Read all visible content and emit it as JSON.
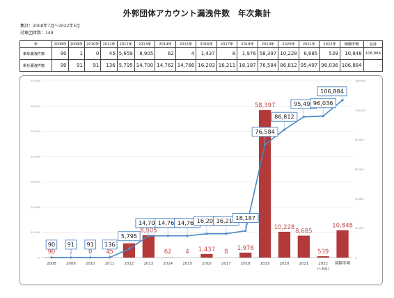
{
  "header": {
    "title": "外郭団体アカウント漏洩件数　年次集計",
    "period_label": "集計：2008年7月～2022年5月",
    "count_label": "対象団体数：149"
  },
  "table": {
    "corner": "年",
    "years": [
      "2008年",
      "2009年",
      "2010年",
      "2011年",
      "2012年",
      "2013年",
      "2014年",
      "2015年",
      "2016年",
      "2017年",
      "2018年",
      "2019年",
      "2020年",
      "2021年",
      "2022年",
      "時期不明",
      "合計"
    ],
    "rows": [
      {
        "label": "単年漏洩件数",
        "values": [
          "90",
          "1",
          "0",
          "45",
          "5,659",
          "8,905",
          "62",
          "4",
          "1,437",
          "8",
          "1,976",
          "58,397",
          "10,228",
          "8,685",
          "539",
          "10,848",
          "106,884"
        ]
      },
      {
        "label": "累計漏洩件数",
        "values": [
          "90",
          "91",
          "91",
          "136",
          "5,795",
          "14,700",
          "14,762",
          "14,766",
          "16,203",
          "16,211",
          "18,187",
          "76,584",
          "86,812",
          "95,497",
          "96,036",
          "106,884",
          "-"
        ]
      }
    ]
  },
  "colors": {
    "bar": "#b33a3a",
    "line": "#4a86c5",
    "bar_label": "#c24a4a",
    "callout_border": "#4a86c5"
  },
  "chart_data": {
    "type": "bar+line",
    "categories": [
      "2008",
      "2009",
      "2010",
      "2011",
      "2012",
      "2013",
      "2014",
      "2015",
      "2016",
      "2017",
      "2018",
      "2019",
      "2020",
      "2021",
      "2022",
      "時期不明"
    ],
    "category_sublabels": [
      "",
      "",
      "",
      "",
      "",
      "",
      "",
      "",
      "",
      "",
      "",
      "",
      "",
      "",
      "（～5月）",
      ""
    ],
    "series": [
      {
        "type": "bar",
        "axis": "left",
        "values": [
          90,
          1,
          0,
          45,
          5659,
          8905,
          62,
          4,
          1437,
          8,
          1976,
          58397,
          10228,
          8685,
          539,
          10848
        ]
      },
      {
        "type": "line",
        "axis": "right",
        "values": [
          90,
          91,
          91,
          136,
          5795,
          14700,
          14762,
          14766,
          16203,
          16211,
          18187,
          76584,
          86812,
          95497,
          96036,
          106884
        ]
      }
    ],
    "bar_labels": [
      "90",
      "1",
      "0",
      "45",
      "5,659",
      "8,905",
      "62",
      "4",
      "1,437",
      "8",
      "1,976",
      "58,397",
      "10,228",
      "8,685",
      "539",
      "10,848"
    ],
    "line_labels": [
      "90",
      "91",
      "91",
      "136",
      "5,795",
      "14,700",
      "14,762",
      "14,766",
      "16,203",
      "16,211",
      "18,187",
      "76,584",
      "86,812",
      "95,497",
      "96,036",
      "106,884"
    ],
    "y_left": {
      "min": 0,
      "max": 70000,
      "ticks": [
        0,
        10000,
        20000,
        30000,
        40000,
        50000,
        60000,
        70000
      ],
      "tick_labels": [
        "0",
        "10,000",
        "20,000",
        "30,000",
        "40,000",
        "50,000",
        "60,000",
        "70,000"
      ]
    },
    "y_right": {
      "min": 0,
      "max": 120000,
      "ticks": [
        0,
        20000,
        40000,
        60000,
        80000,
        100000,
        120000
      ],
      "tick_labels": [
        "0",
        "20,000",
        "40,000",
        "60,000",
        "80,000",
        "100,000",
        "120,000"
      ]
    },
    "grid": true,
    "legend": "none"
  }
}
